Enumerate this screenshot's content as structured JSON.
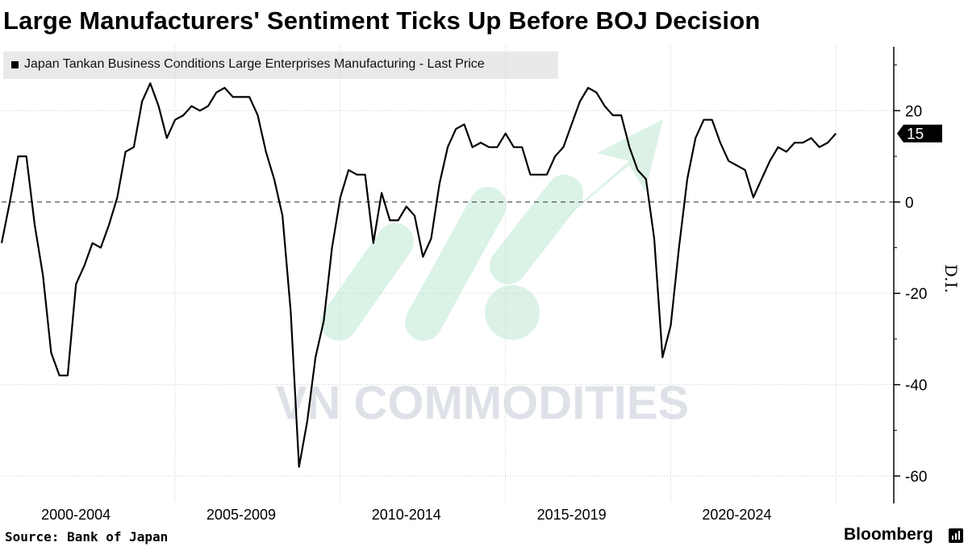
{
  "title": "Large Manufacturers' Sentiment Ticks Up Before BOJ Decision",
  "legend": "Japan Tankan Business Conditions Large Enterprises Manufacturing - Last Price",
  "source": "Source: Bank of Japan",
  "brand": "Bloomberg",
  "watermark": "VN COMMODITIES",
  "colors": {
    "line": "#000000",
    "legend_bg": "#e9e9e9",
    "watermark_text": "#d6dbe3",
    "watermark_arrow": "#bfe8d4"
  },
  "chart_data": {
    "type": "line",
    "title": "Large Manufacturers' Sentiment Ticks Up Before BOJ Decision",
    "ylabel": "D.I.",
    "ylim": [
      -66,
      34
    ],
    "yticks": [
      20,
      0,
      -20,
      -40,
      -60
    ],
    "xlim": [
      1999.75,
      2026.75
    ],
    "x_tick_labels": [
      "2000-2004",
      "2005-2009",
      "2010-2014",
      "2015-2019",
      "2020-2024"
    ],
    "grid": true,
    "zero_line": "dashed",
    "last_value": 15,
    "series": [
      {
        "name": "Japan Tankan Business Conditions Large Enterprises Manufacturing - Last Price",
        "x": [
          1999.75,
          2000.0,
          2000.25,
          2000.5,
          2000.75,
          2001.0,
          2001.25,
          2001.5,
          2001.75,
          2002.0,
          2002.25,
          2002.5,
          2002.75,
          2003.0,
          2003.25,
          2003.5,
          2003.75,
          2004.0,
          2004.25,
          2004.5,
          2004.75,
          2005.0,
          2005.25,
          2005.5,
          2005.75,
          2006.0,
          2006.25,
          2006.5,
          2006.75,
          2007.0,
          2007.25,
          2007.5,
          2007.75,
          2008.0,
          2008.25,
          2008.5,
          2008.75,
          2009.0,
          2009.25,
          2009.5,
          2009.75,
          2010.0,
          2010.25,
          2010.5,
          2010.75,
          2011.0,
          2011.25,
          2011.5,
          2011.75,
          2012.0,
          2012.25,
          2012.5,
          2012.75,
          2013.0,
          2013.25,
          2013.5,
          2013.75,
          2014.0,
          2014.25,
          2014.5,
          2014.75,
          2015.0,
          2015.25,
          2015.5,
          2015.75,
          2016.0,
          2016.25,
          2016.5,
          2016.75,
          2017.0,
          2017.25,
          2017.5,
          2017.75,
          2018.0,
          2018.25,
          2018.5,
          2018.75,
          2019.0,
          2019.25,
          2019.5,
          2019.75,
          2020.0,
          2020.25,
          2020.5,
          2020.75,
          2021.0,
          2021.25,
          2021.5,
          2021.75,
          2022.0,
          2022.25,
          2022.5,
          2022.75,
          2023.0,
          2023.25,
          2023.5,
          2023.75,
          2024.0,
          2024.25,
          2024.5,
          2024.75,
          2025.0
        ],
        "values": [
          -9,
          0,
          10,
          10,
          -5,
          -16,
          -33,
          -38,
          -38,
          -18,
          -14,
          -9,
          -10,
          -5,
          1,
          11,
          12,
          22,
          26,
          21,
          14,
          18,
          19,
          21,
          20,
          21,
          24,
          25,
          23,
          23,
          23,
          19,
          11,
          5,
          -3,
          -24,
          -58,
          -48,
          -34,
          -26,
          -10,
          1,
          7,
          6,
          6,
          -9,
          2,
          -4,
          -4,
          -1,
          -3,
          -12,
          -8,
          4,
          12,
          16,
          17,
          12,
          13,
          12,
          12,
          15,
          12,
          12,
          6,
          6,
          6,
          10,
          12,
          17,
          22,
          25,
          24,
          21,
          19,
          19,
          12,
          7,
          5,
          -8,
          -34,
          -27,
          -10,
          5,
          14,
          18,
          18,
          13,
          9,
          8,
          7,
          1,
          5,
          9,
          12,
          11,
          13,
          13,
          14,
          12,
          13,
          15
        ]
      }
    ]
  }
}
